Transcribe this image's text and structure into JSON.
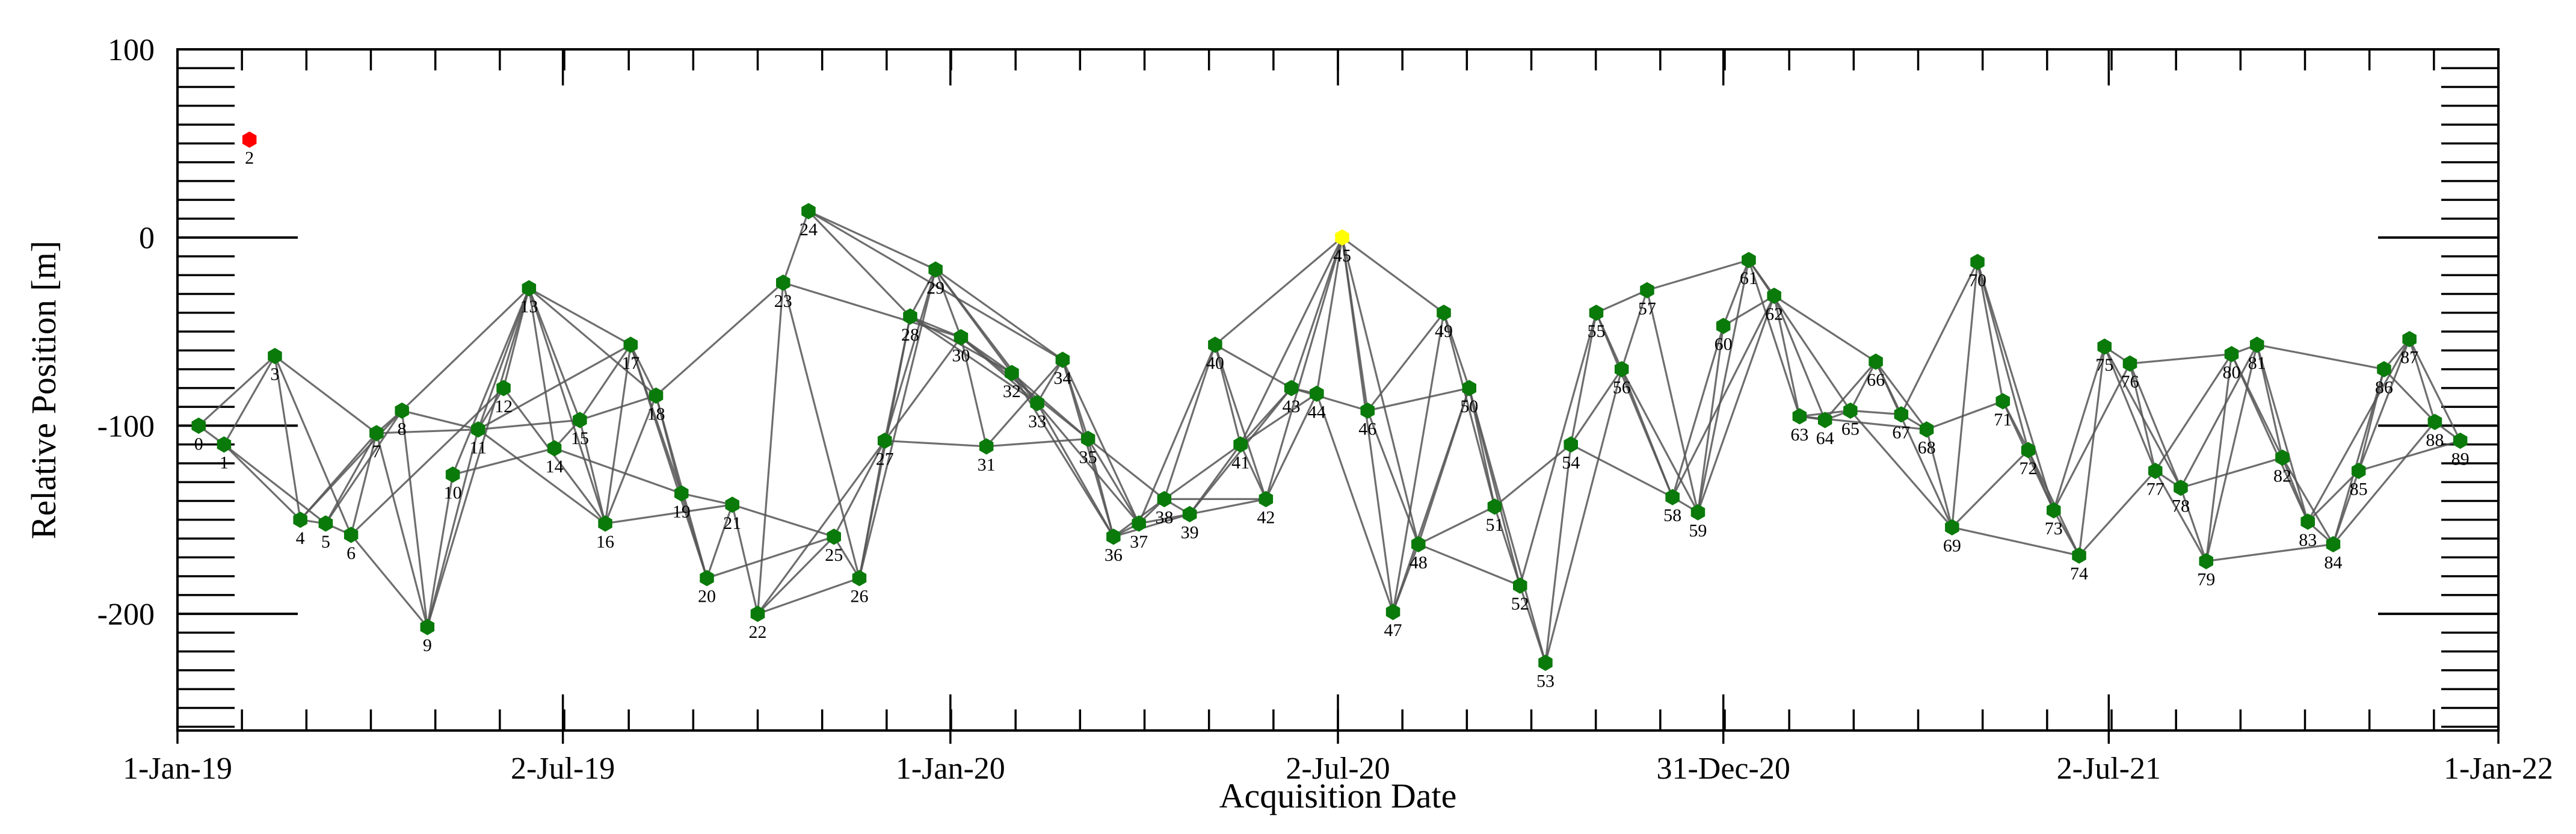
{
  "chart_data": {
    "type": "scatter",
    "subtype": "baseline-network",
    "xlabel": "Acquisition Date",
    "ylabel": "Relative Position [m]",
    "xlim": [
      0,
      1096
    ],
    "ylim": [
      -262,
      100
    ],
    "x_ticks": [
      {
        "day": 0,
        "label": "1-Jan-19"
      },
      {
        "day": 182,
        "label": "2-Jul-19"
      },
      {
        "day": 365,
        "label": "1-Jan-20"
      },
      {
        "day": 548,
        "label": "2-Jul-20"
      },
      {
        "day": 730,
        "label": "31-Dec-20"
      },
      {
        "day": 912,
        "label": "2-Jul-21"
      },
      {
        "day": 1096,
        "label": "1-Jan-22"
      }
    ],
    "y_ticks": [
      100,
      0,
      -100,
      -200
    ],
    "colors": {
      "normal": "#0a7a0a",
      "excluded": "#ff0000",
      "reference": "#ffff00",
      "edge": "#555555"
    },
    "points": [
      {
        "id": "0",
        "x": 10,
        "y": -100
      },
      {
        "id": "1",
        "x": 22,
        "y": -110
      },
      {
        "id": "2",
        "x": 34,
        "y": 52,
        "status": "excluded"
      },
      {
        "id": "3",
        "x": 46,
        "y": -63
      },
      {
        "id": "4",
        "x": 58,
        "y": -150
      },
      {
        "id": "5",
        "x": 70,
        "y": -152
      },
      {
        "id": "6",
        "x": 82,
        "y": -158
      },
      {
        "id": "7",
        "x": 94,
        "y": -104
      },
      {
        "id": "8",
        "x": 106,
        "y": -92
      },
      {
        "id": "9",
        "x": 118,
        "y": -207
      },
      {
        "id": "10",
        "x": 130,
        "y": -126
      },
      {
        "id": "11",
        "x": 142,
        "y": -102
      },
      {
        "id": "12",
        "x": 154,
        "y": -80
      },
      {
        "id": "13",
        "x": 166,
        "y": -27
      },
      {
        "id": "14",
        "x": 178,
        "y": -112
      },
      {
        "id": "15",
        "x": 190,
        "y": -97
      },
      {
        "id": "16",
        "x": 202,
        "y": -152
      },
      {
        "id": "17",
        "x": 214,
        "y": -57
      },
      {
        "id": "18",
        "x": 226,
        "y": -84
      },
      {
        "id": "19",
        "x": 238,
        "y": -136
      },
      {
        "id": "20",
        "x": 250,
        "y": -181
      },
      {
        "id": "21",
        "x": 262,
        "y": -142
      },
      {
        "id": "22",
        "x": 274,
        "y": -200
      },
      {
        "id": "23",
        "x": 286,
        "y": -24
      },
      {
        "id": "24",
        "x": 298,
        "y": 14
      },
      {
        "id": "25",
        "x": 310,
        "y": -159
      },
      {
        "id": "26",
        "x": 322,
        "y": -181
      },
      {
        "id": "27",
        "x": 334,
        "y": -108
      },
      {
        "id": "28",
        "x": 346,
        "y": -42
      },
      {
        "id": "29",
        "x": 358,
        "y": -17
      },
      {
        "id": "30",
        "x": 370,
        "y": -53
      },
      {
        "id": "31",
        "x": 382,
        "y": -111
      },
      {
        "id": "32",
        "x": 394,
        "y": -72
      },
      {
        "id": "33",
        "x": 406,
        "y": -88
      },
      {
        "id": "34",
        "x": 418,
        "y": -65
      },
      {
        "id": "35",
        "x": 430,
        "y": -107
      },
      {
        "id": "36",
        "x": 442,
        "y": -159
      },
      {
        "id": "37",
        "x": 454,
        "y": -152
      },
      {
        "id": "38",
        "x": 466,
        "y": -139
      },
      {
        "id": "39",
        "x": 478,
        "y": -147
      },
      {
        "id": "40",
        "x": 490,
        "y": -57
      },
      {
        "id": "41",
        "x": 502,
        "y": -110
      },
      {
        "id": "42",
        "x": 514,
        "y": -139
      },
      {
        "id": "43",
        "x": 526,
        "y": -80
      },
      {
        "id": "44",
        "x": 538,
        "y": -83
      },
      {
        "id": "45",
        "x": 550,
        "y": 0,
        "status": "reference"
      },
      {
        "id": "46",
        "x": 562,
        "y": -92
      },
      {
        "id": "47",
        "x": 574,
        "y": -199
      },
      {
        "id": "48",
        "x": 586,
        "y": -163
      },
      {
        "id": "49",
        "x": 598,
        "y": -40
      },
      {
        "id": "50",
        "x": 610,
        "y": -80
      },
      {
        "id": "51",
        "x": 622,
        "y": -143
      },
      {
        "id": "52",
        "x": 634,
        "y": -185
      },
      {
        "id": "53",
        "x": 646,
        "y": -226
      },
      {
        "id": "54",
        "x": 658,
        "y": -110
      },
      {
        "id": "55",
        "x": 670,
        "y": -40
      },
      {
        "id": "56",
        "x": 682,
        "y": -70
      },
      {
        "id": "57",
        "x": 694,
        "y": -28
      },
      {
        "id": "58",
        "x": 706,
        "y": -138
      },
      {
        "id": "59",
        "x": 718,
        "y": -146
      },
      {
        "id": "60",
        "x": 730,
        "y": -47
      },
      {
        "id": "61",
        "x": 742,
        "y": -12
      },
      {
        "id": "62",
        "x": 754,
        "y": -31
      },
      {
        "id": "63",
        "x": 766,
        "y": -95
      },
      {
        "id": "64",
        "x": 778,
        "y": -97
      },
      {
        "id": "65",
        "x": 790,
        "y": -92
      },
      {
        "id": "66",
        "x": 802,
        "y": -66
      },
      {
        "id": "67",
        "x": 814,
        "y": -94
      },
      {
        "id": "68",
        "x": 826,
        "y": -102
      },
      {
        "id": "69",
        "x": 838,
        "y": -154
      },
      {
        "id": "70",
        "x": 850,
        "y": -13
      },
      {
        "id": "71",
        "x": 862,
        "y": -87
      },
      {
        "id": "72",
        "x": 874,
        "y": -113
      },
      {
        "id": "73",
        "x": 886,
        "y": -145
      },
      {
        "id": "74",
        "x": 898,
        "y": -169
      },
      {
        "id": "75",
        "x": 910,
        "y": -58
      },
      {
        "id": "76",
        "x": 922,
        "y": -67
      },
      {
        "id": "77",
        "x": 934,
        "y": -124
      },
      {
        "id": "78",
        "x": 946,
        "y": -133
      },
      {
        "id": "79",
        "x": 958,
        "y": -172
      },
      {
        "id": "80",
        "x": 970,
        "y": -62
      },
      {
        "id": "81",
        "x": 982,
        "y": -57
      },
      {
        "id": "82",
        "x": 994,
        "y": -117
      },
      {
        "id": "83",
        "x": 1006,
        "y": -151
      },
      {
        "id": "84",
        "x": 1018,
        "y": -163
      },
      {
        "id": "85",
        "x": 1030,
        "y": -124
      },
      {
        "id": "86",
        "x": 1042,
        "y": -70
      },
      {
        "id": "87",
        "x": 1054,
        "y": -54
      },
      {
        "id": "88",
        "x": 1066,
        "y": -98
      },
      {
        "id": "89",
        "x": 1078,
        "y": -108
      }
    ],
    "edges": [
      [
        0,
        1
      ],
      [
        0,
        3
      ],
      [
        1,
        3
      ],
      [
        1,
        4
      ],
      [
        1,
        5
      ],
      [
        3,
        4
      ],
      [
        3,
        6
      ],
      [
        3,
        7
      ],
      [
        4,
        5
      ],
      [
        4,
        7
      ],
      [
        4,
        8
      ],
      [
        5,
        6
      ],
      [
        5,
        7
      ],
      [
        5,
        8
      ],
      [
        6,
        7
      ],
      [
        6,
        9
      ],
      [
        6,
        12
      ],
      [
        7,
        8
      ],
      [
        7,
        9
      ],
      [
        7,
        11
      ],
      [
        8,
        9
      ],
      [
        8,
        11
      ],
      [
        8,
        13
      ],
      [
        9,
        11
      ],
      [
        9,
        13
      ],
      [
        9,
        10
      ],
      [
        10,
        13
      ],
      [
        10,
        14
      ],
      [
        11,
        12
      ],
      [
        11,
        13
      ],
      [
        11,
        15
      ],
      [
        11,
        16
      ],
      [
        11,
        17
      ],
      [
        12,
        13
      ],
      [
        12,
        16
      ],
      [
        13,
        15
      ],
      [
        13,
        17
      ],
      [
        13,
        14
      ],
      [
        13,
        16
      ],
      [
        13,
        18
      ],
      [
        14,
        15
      ],
      [
        14,
        19
      ],
      [
        15,
        16
      ],
      [
        15,
        17
      ],
      [
        15,
        18
      ],
      [
        16,
        17
      ],
      [
        16,
        18
      ],
      [
        16,
        21
      ],
      [
        17,
        18
      ],
      [
        17,
        20
      ],
      [
        17,
        19
      ],
      [
        18,
        20
      ],
      [
        18,
        19
      ],
      [
        18,
        23
      ],
      [
        19,
        20
      ],
      [
        19,
        21
      ],
      [
        20,
        21
      ],
      [
        20,
        25
      ],
      [
        21,
        22
      ],
      [
        21,
        25
      ],
      [
        22,
        23
      ],
      [
        22,
        26
      ],
      [
        22,
        27
      ],
      [
        22,
        25
      ],
      [
        23,
        24
      ],
      [
        23,
        26
      ],
      [
        23,
        30
      ],
      [
        24,
        28
      ],
      [
        24,
        29
      ],
      [
        24,
        34
      ],
      [
        25,
        26
      ],
      [
        25,
        27
      ],
      [
        26,
        27
      ],
      [
        26,
        28
      ],
      [
        26,
        29
      ],
      [
        27,
        28
      ],
      [
        27,
        29
      ],
      [
        27,
        30
      ],
      [
        27,
        31
      ],
      [
        28,
        29
      ],
      [
        28,
        30
      ],
      [
        28,
        32
      ],
      [
        28,
        33
      ],
      [
        29,
        30
      ],
      [
        29,
        32
      ],
      [
        29,
        33
      ],
      [
        29,
        34
      ],
      [
        30,
        31
      ],
      [
        30,
        32
      ],
      [
        30,
        33
      ],
      [
        30,
        35
      ],
      [
        31,
        34
      ],
      [
        31,
        35
      ],
      [
        32,
        33
      ],
      [
        32,
        35
      ],
      [
        32,
        36
      ],
      [
        33,
        34
      ],
      [
        33,
        36
      ],
      [
        33,
        37
      ],
      [
        34,
        35
      ],
      [
        34,
        36
      ],
      [
        34,
        37
      ],
      [
        35,
        36
      ],
      [
        35,
        37
      ],
      [
        35,
        38
      ],
      [
        36,
        37
      ],
      [
        36,
        38
      ],
      [
        36,
        39
      ],
      [
        37,
        38
      ],
      [
        37,
        39
      ],
      [
        37,
        40
      ],
      [
        38,
        39
      ],
      [
        38,
        40
      ],
      [
        38,
        41
      ],
      [
        38,
        42
      ],
      [
        39,
        41
      ],
      [
        39,
        42
      ],
      [
        39,
        43
      ],
      [
        40,
        41
      ],
      [
        40,
        42
      ],
      [
        40,
        43
      ],
      [
        40,
        45
      ],
      [
        41,
        42
      ],
      [
        41,
        43
      ],
      [
        41,
        44
      ],
      [
        41,
        45
      ],
      [
        42,
        44
      ],
      [
        42,
        45
      ],
      [
        43,
        44
      ],
      [
        43,
        45
      ],
      [
        43,
        46
      ],
      [
        44,
        45
      ],
      [
        44,
        47
      ],
      [
        45,
        46
      ],
      [
        45,
        47
      ],
      [
        45,
        48
      ],
      [
        45,
        49
      ],
      [
        46,
        48
      ],
      [
        46,
        49
      ],
      [
        46,
        50
      ],
      [
        47,
        48
      ],
      [
        47,
        49
      ],
      [
        47,
        50
      ],
      [
        48,
        50
      ],
      [
        48,
        51
      ],
      [
        48,
        52
      ],
      [
        49,
        50
      ],
      [
        49,
        51
      ],
      [
        50,
        51
      ],
      [
        50,
        52
      ],
      [
        50,
        53
      ],
      [
        51,
        52
      ],
      [
        51,
        54
      ],
      [
        52,
        53
      ],
      [
        52,
        55
      ],
      [
        53,
        54
      ],
      [
        53,
        56
      ],
      [
        54,
        55
      ],
      [
        54,
        56
      ],
      [
        54,
        58
      ],
      [
        55,
        56
      ],
      [
        55,
        57
      ],
      [
        55,
        58
      ],
      [
        56,
        57
      ],
      [
        56,
        58
      ],
      [
        56,
        59
      ],
      [
        57,
        59
      ],
      [
        57,
        61
      ],
      [
        58,
        59
      ],
      [
        58,
        60
      ],
      [
        58,
        62
      ],
      [
        59,
        60
      ],
      [
        59,
        61
      ],
      [
        59,
        62
      ],
      [
        60,
        61
      ],
      [
        60,
        62
      ],
      [
        61,
        62
      ],
      [
        61,
        63
      ],
      [
        61,
        65
      ],
      [
        62,
        63
      ],
      [
        62,
        64
      ],
      [
        62,
        66
      ],
      [
        63,
        64
      ],
      [
        63,
        65
      ],
      [
        63,
        68
      ],
      [
        64,
        65
      ],
      [
        64,
        66
      ],
      [
        65,
        66
      ],
      [
        65,
        67
      ],
      [
        65,
        69
      ],
      [
        66,
        67
      ],
      [
        66,
        68
      ],
      [
        66,
        69
      ],
      [
        67,
        68
      ],
      [
        67,
        70
      ],
      [
        68,
        69
      ],
      [
        68,
        71
      ],
      [
        69,
        70
      ],
      [
        69,
        72
      ],
      [
        69,
        74
      ],
      [
        70,
        71
      ],
      [
        70,
        72
      ],
      [
        70,
        73
      ],
      [
        71,
        72
      ],
      [
        71,
        73
      ],
      [
        72,
        73
      ],
      [
        72,
        74
      ],
      [
        73,
        74
      ],
      [
        73,
        75
      ],
      [
        73,
        76
      ],
      [
        74,
        75
      ],
      [
        74,
        77
      ],
      [
        75,
        76
      ],
      [
        75,
        77
      ],
      [
        75,
        78
      ],
      [
        76,
        77
      ],
      [
        76,
        78
      ],
      [
        76,
        80
      ],
      [
        77,
        78
      ],
      [
        77,
        79
      ],
      [
        77,
        80
      ],
      [
        78,
        79
      ],
      [
        78,
        81
      ],
      [
        78,
        82
      ],
      [
        79,
        80
      ],
      [
        79,
        81
      ],
      [
        79,
        84
      ],
      [
        80,
        81
      ],
      [
        80,
        82
      ],
      [
        80,
        83
      ],
      [
        81,
        82
      ],
      [
        81,
        83
      ],
      [
        81,
        86
      ],
      [
        82,
        83
      ],
      [
        82,
        84
      ],
      [
        83,
        84
      ],
      [
        83,
        85
      ],
      [
        83,
        87
      ],
      [
        84,
        85
      ],
      [
        84,
        86
      ],
      [
        84,
        88
      ],
      [
        85,
        86
      ],
      [
        85,
        87
      ],
      [
        85,
        89
      ],
      [
        86,
        87
      ],
      [
        86,
        88
      ],
      [
        87,
        88
      ],
      [
        87,
        89
      ],
      [
        88,
        89
      ]
    ]
  }
}
